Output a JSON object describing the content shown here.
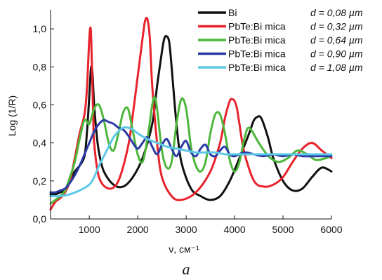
{
  "chart_data": {
    "type": "line",
    "xlabel": "ν, см⁻¹",
    "ylabel": "Log (1/R)",
    "panel_label": "a",
    "xlim": [
      200,
      6000
    ],
    "ylim": [
      0,
      1.1
    ],
    "x_ticks": [
      1000,
      2000,
      3000,
      4000,
      5000,
      6000
    ],
    "x_tick_labels": [
      "1000",
      "2000",
      "3000",
      "4000",
      "5000",
      "6000"
    ],
    "y_ticks": [
      0,
      0.2,
      0.4,
      0.6,
      0.8,
      1.0
    ],
    "y_tick_labels": [
      "0,0",
      "0,2",
      "0,4",
      "0,6",
      "0,8",
      "1,0"
    ],
    "grid": false,
    "legend_position": "top-right",
    "series": [
      {
        "name": "Bi  d = 0,08 µm",
        "legend": {
          "sample": "Bi",
          "d": "d = 0,08 µm"
        },
        "color": "#111111",
        "x": [
          200,
          300,
          400,
          500,
          600,
          700,
          800,
          900,
          950,
          1000,
          1030,
          1050,
          1070,
          1100,
          1150,
          1200,
          1300,
          1500,
          1700,
          1900,
          2100,
          2300,
          2400,
          2500,
          2550,
          2600,
          2650,
          2700,
          2800,
          2900,
          3100,
          3300,
          3500,
          3700,
          3900,
          4100,
          4300,
          4400,
          4500,
          4550,
          4600,
          4700,
          4800,
          5000,
          5200,
          5400,
          5600,
          5800,
          6000
        ],
        "y": [
          0.13,
          0.13,
          0.14,
          0.15,
          0.2,
          0.25,
          0.28,
          0.33,
          0.45,
          0.65,
          0.78,
          0.8,
          0.75,
          0.6,
          0.45,
          0.35,
          0.25,
          0.18,
          0.17,
          0.22,
          0.32,
          0.5,
          0.7,
          0.88,
          0.95,
          0.96,
          0.93,
          0.8,
          0.5,
          0.3,
          0.16,
          0.12,
          0.1,
          0.12,
          0.2,
          0.32,
          0.45,
          0.52,
          0.54,
          0.53,
          0.5,
          0.42,
          0.32,
          0.2,
          0.15,
          0.16,
          0.22,
          0.27,
          0.25
        ]
      },
      {
        "name": "PbTe:Bi mica d = 0,32 µm",
        "legend": {
          "sample": "PbTe:Bi mica",
          "d": "d = 0,32 µm"
        },
        "color": "#e8232c",
        "x": [
          200,
          300,
          400,
          500,
          600,
          700,
          800,
          900,
          950,
          1000,
          1030,
          1050,
          1080,
          1100,
          1200,
          1400,
          1600,
          1800,
          1900,
          2000,
          2100,
          2150,
          2200,
          2250,
          2300,
          2400,
          2500,
          2700,
          2900,
          3200,
          3500,
          3700,
          3800,
          3900,
          3950,
          4000,
          4050,
          4100,
          4200,
          4400,
          4600,
          4800,
          5000,
          5200,
          5400,
          5600,
          5800,
          6000
        ],
        "y": [
          0.05,
          0.09,
          0.11,
          0.14,
          0.2,
          0.32,
          0.45,
          0.55,
          0.68,
          0.95,
          1.0,
          0.85,
          0.55,
          0.4,
          0.22,
          0.16,
          0.2,
          0.38,
          0.55,
          0.75,
          0.95,
          1.04,
          1.05,
          0.95,
          0.7,
          0.4,
          0.22,
          0.12,
          0.1,
          0.14,
          0.25,
          0.4,
          0.53,
          0.62,
          0.63,
          0.62,
          0.58,
          0.5,
          0.35,
          0.2,
          0.17,
          0.18,
          0.22,
          0.3,
          0.37,
          0.4,
          0.36,
          0.32
        ]
      },
      {
        "name": "PbTe:Bi mica d = 0,64 µm",
        "legend": {
          "sample": "PbTe:Bi mica",
          "d": "d = 0,64 µm"
        },
        "color": "#4db73b",
        "x": [
          200,
          300,
          400,
          500,
          600,
          700,
          800,
          900,
          1000,
          1100,
          1200,
          1300,
          1400,
          1500,
          1600,
          1700,
          1800,
          1900,
          2000,
          2100,
          2200,
          2300,
          2350,
          2400,
          2500,
          2600,
          2700,
          2800,
          2900,
          3000,
          3100,
          3200,
          3300,
          3400,
          3500,
          3600,
          3700,
          3800,
          3900,
          4000,
          4100,
          4200,
          4300,
          4500,
          4700,
          4900,
          5100,
          5300,
          5500,
          5700,
          6000
        ],
        "y": [
          0.08,
          0.1,
          0.12,
          0.15,
          0.22,
          0.3,
          0.42,
          0.52,
          0.5,
          0.58,
          0.6,
          0.52,
          0.4,
          0.36,
          0.45,
          0.56,
          0.58,
          0.46,
          0.34,
          0.3,
          0.42,
          0.6,
          0.64,
          0.58,
          0.36,
          0.27,
          0.3,
          0.5,
          0.63,
          0.58,
          0.38,
          0.28,
          0.25,
          0.3,
          0.45,
          0.55,
          0.55,
          0.45,
          0.31,
          0.25,
          0.3,
          0.42,
          0.48,
          0.4,
          0.33,
          0.3,
          0.32,
          0.36,
          0.34,
          0.31,
          0.33
        ]
      },
      {
        "name": "PbTe:Bi mica d = 0,90 µm",
        "legend": {
          "sample": "PbTe:Bi mica",
          "d": "d = 0,90 µm"
        },
        "color": "#2b3aa6",
        "x": [
          200,
          300,
          400,
          500,
          600,
          700,
          800,
          900,
          1000,
          1100,
          1200,
          1300,
          1400,
          1500,
          1600,
          1700,
          1800,
          1900,
          2000,
          2100,
          2200,
          2300,
          2400,
          2500,
          2600,
          2700,
          2800,
          2900,
          3000,
          3100,
          3200,
          3300,
          3400,
          3500,
          3600,
          3700,
          3800,
          3900,
          4000,
          4200,
          4400,
          4600,
          4800,
          5000,
          5200,
          5400,
          5600,
          5800,
          6000
        ],
        "y": [
          0.14,
          0.14,
          0.15,
          0.16,
          0.19,
          0.23,
          0.28,
          0.34,
          0.4,
          0.46,
          0.5,
          0.52,
          0.51,
          0.5,
          0.48,
          0.47,
          0.44,
          0.4,
          0.37,
          0.4,
          0.43,
          0.38,
          0.34,
          0.39,
          0.42,
          0.37,
          0.33,
          0.38,
          0.41,
          0.35,
          0.33,
          0.37,
          0.39,
          0.34,
          0.33,
          0.36,
          0.38,
          0.34,
          0.33,
          0.35,
          0.34,
          0.33,
          0.34,
          0.33,
          0.34,
          0.33,
          0.33,
          0.33,
          0.33
        ]
      },
      {
        "name": "PbTe:Bi mica d = 1,08 µm",
        "legend": {
          "sample": "PbTe:Bi mica",
          "d": "d = 1,08 µm"
        },
        "color": "#5cc9e6",
        "x": [
          200,
          400,
          600,
          800,
          1000,
          1100,
          1200,
          1300,
          1400,
          1500,
          1600,
          1700,
          1800,
          1900,
          2000,
          2200,
          2400,
          2600,
          2800,
          3000,
          3200,
          3400,
          3600,
          3800,
          4000,
          4200,
          4400,
          4600,
          4800,
          5000,
          5200,
          5400,
          5600,
          5800,
          6000
        ],
        "y": [
          0.12,
          0.12,
          0.13,
          0.15,
          0.18,
          0.22,
          0.28,
          0.33,
          0.38,
          0.43,
          0.46,
          0.48,
          0.48,
          0.47,
          0.45,
          0.42,
          0.4,
          0.38,
          0.37,
          0.36,
          0.35,
          0.35,
          0.35,
          0.34,
          0.34,
          0.34,
          0.34,
          0.34,
          0.34,
          0.34,
          0.34,
          0.34,
          0.34,
          0.34,
          0.34
        ]
      }
    ]
  }
}
